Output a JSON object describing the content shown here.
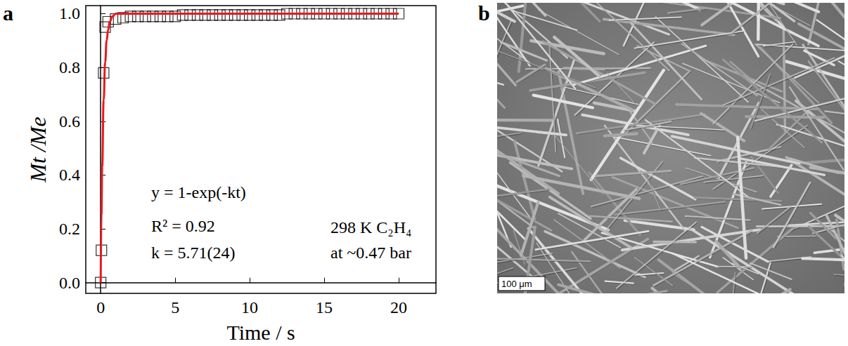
{
  "chart_data": {
    "type": "scatter",
    "panel": "a",
    "xlabel": "Time / s",
    "ylabel": "Mt /Me",
    "xlim": [
      -1,
      22.5
    ],
    "xticks": [
      0,
      5,
      10,
      15,
      20
    ],
    "ylim": [
      -0.04,
      1.03
    ],
    "yticks": [
      {
        "value": 0,
        "label": "0.0"
      },
      {
        "value": 0.2,
        "label": "0.2"
      },
      {
        "value": 0.4,
        "label": "0.4"
      },
      {
        "value": 0.6,
        "label": "0.6"
      },
      {
        "value": 0.8,
        "label": "0.8"
      },
      {
        "value": 1,
        "label": "1.0"
      }
    ],
    "grid": false,
    "annotations": [
      "y = 1-exp(-kt)",
      "R² = 0.92",
      "k = 5.71(24)",
      "298 K C₂H₄",
      "at ~0.47 bar"
    ],
    "series": [
      {
        "type": "scatter",
        "marker": "square",
        "color": "#000000",
        "x": [
          0,
          0.05,
          0.2,
          0.3,
          0.5,
          1,
          1.5,
          2,
          2.5,
          3,
          3.5,
          4,
          4.5,
          5,
          5.5,
          6,
          6.5,
          7,
          7.5,
          8,
          8.5,
          9,
          9.5,
          10,
          10.5,
          11,
          11.5,
          12,
          12.5,
          13,
          13.5,
          14,
          14.5,
          15,
          15.5,
          16,
          16.5,
          17,
          17.5,
          18,
          18.5,
          19,
          19.5,
          20
        ],
        "values": [
          0,
          0.12,
          0.78,
          0.95,
          0.97,
          0.98,
          0.985,
          0.99,
          0.99,
          0.99,
          0.99,
          0.99,
          0.99,
          0.99,
          0.995,
          0.995,
          0.995,
          0.995,
          0.995,
          0.995,
          0.995,
          0.995,
          0.995,
          0.995,
          0.995,
          0.995,
          0.995,
          0.995,
          1,
          1,
          1,
          1,
          1,
          1,
          1,
          1,
          1,
          1,
          1,
          1,
          1,
          1,
          1,
          1
        ]
      },
      {
        "type": "line",
        "line_style": "solid",
        "color": "#e8191c",
        "x": [
          0,
          0.05,
          0.1,
          0.2,
          0.3,
          0.4,
          0.5,
          0.6,
          0.8,
          1,
          1.5,
          20
        ],
        "values": [
          0,
          0.25,
          0.43,
          0.68,
          0.82,
          0.9,
          0.94,
          0.97,
          0.99,
          1,
          1,
          1
        ]
      }
    ]
  },
  "image_panel": {
    "panel": "b",
    "scale_bar": "100 μm"
  }
}
